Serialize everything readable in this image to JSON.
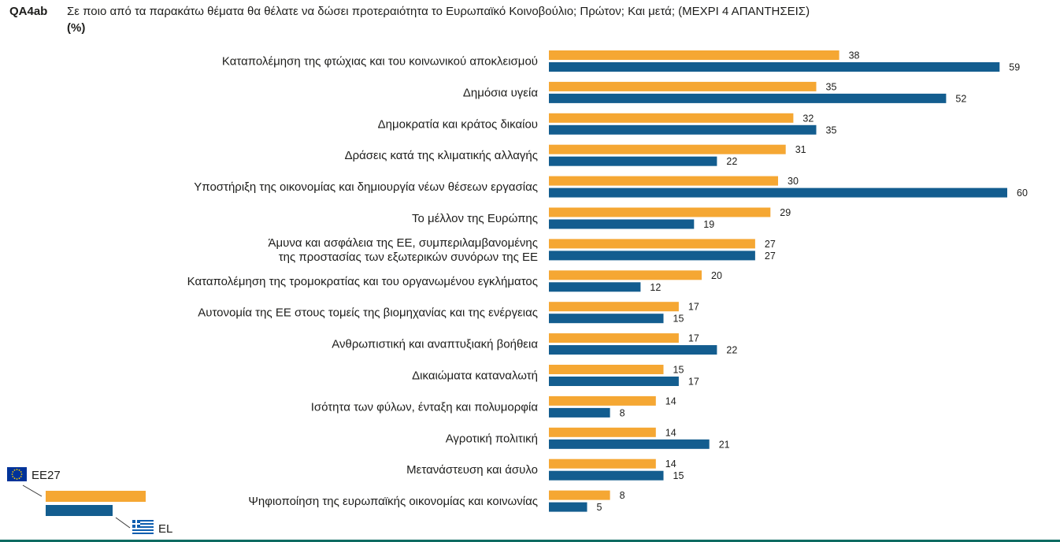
{
  "header": {
    "question_id": "QA4ab",
    "question": "Σε ποιο από τα παρακάτω θέματα θα θέλατε να δώσει προτεραιότητα το Ευρωπαϊκό Κοινοβούλιο; Πρώτον; Και μετά;  (ΜΕΧΡΙ 4 ΑΠΑΝΤΗΣΕΙΣ)",
    "unit": "(%)"
  },
  "colors": {
    "eu27": "#f5a733",
    "el": "#135d8f",
    "leader_line": "#333333",
    "flag_eu_blue": "#003399",
    "flag_eu_star": "#ffcc00",
    "flag_gr_blue": "#0d5eaf",
    "bottom_rule": "#0e6b62"
  },
  "legend": {
    "eu27_label": "ΕΕ27",
    "el_label": "EL",
    "eu27_icon": "eu-flag-icon",
    "el_icon": "greek-flag-icon"
  },
  "chart_data": {
    "type": "bar",
    "orientation": "horizontal",
    "categories": [
      [
        "Καταπολέμηση της φτώχιας και του κοινωνικού αποκλεισμού"
      ],
      [
        "Δημόσια υγεία"
      ],
      [
        "Δημοκρατία και κράτος δικαίου"
      ],
      [
        "Δράσεις κατά της κλιματικής αλλαγής"
      ],
      [
        "Υποστήριξη της οικονομίας και δημιουργία νέων θέσεων εργασίας"
      ],
      [
        "Το μέλλον της Ευρώπης"
      ],
      [
        "Άμυνα και ασφάλεια της ΕΕ, συμπεριλαμβανομένης",
        "της προστασίας των εξωτερικών συνόρων της ΕΕ"
      ],
      [
        "Καταπολέμηση της τρομοκρατίας και του οργανωμένου εγκλήματος"
      ],
      [
        "Αυτονομία της ΕΕ στους τομείς της βιομηχανίας και της ενέργειας"
      ],
      [
        "Ανθρωπιστική και αναπτυξιακή βοήθεια"
      ],
      [
        "Δικαιώματα καταναλωτή"
      ],
      [
        "Ισότητα των φύλων, ένταξη και πολυμορφία"
      ],
      [
        "Αγροτική πολιτική"
      ],
      [
        "Μετανάστευση και άσυλο"
      ],
      [
        "Ψηφιοποίηση της ευρωπαϊκής οικονομίας και κοινωνίας"
      ]
    ],
    "series": [
      {
        "name": "ΕΕ27",
        "values": [
          38,
          35,
          32,
          31,
          30,
          29,
          27,
          20,
          17,
          17,
          15,
          14,
          14,
          14,
          8
        ]
      },
      {
        "name": "EL",
        "values": [
          59,
          52,
          35,
          22,
          60,
          19,
          27,
          12,
          15,
          22,
          17,
          8,
          21,
          15,
          5
        ]
      }
    ],
    "xlim": [
      0,
      60
    ],
    "grid": false,
    "legend_position": "bottom-left"
  }
}
